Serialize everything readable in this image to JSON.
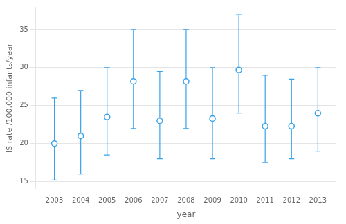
{
  "chart_data": {
    "type": "scatter",
    "x": [
      2003,
      2004,
      2005,
      2006,
      2007,
      2008,
      2009,
      2010,
      2011,
      2012,
      2013
    ],
    "values": [
      20.0,
      21.0,
      23.5,
      28.2,
      23.0,
      28.2,
      23.3,
      29.7,
      22.3,
      22.3,
      24.0
    ],
    "upper": [
      26.0,
      27.0,
      30.0,
      35.0,
      29.5,
      35.0,
      30.0,
      37.0,
      29.0,
      28.5,
      30.0
    ],
    "lower": [
      15.2,
      16.0,
      18.5,
      22.0,
      18.0,
      22.0,
      18.0,
      24.0,
      17.5,
      18.0,
      19.0
    ],
    "xlabel": "year",
    "ylabel": "IS rate /100,000 infants/year",
    "xlim": [
      2002.3,
      2013.7
    ],
    "xticks": [
      2003,
      2004,
      2005,
      2006,
      2007,
      2008,
      2009,
      2010,
      2011,
      2012,
      2013
    ],
    "ylim": [
      14,
      38
    ],
    "yticks": [
      15,
      20,
      25,
      30,
      35
    ],
    "grid": "y",
    "marker": "circle"
  }
}
